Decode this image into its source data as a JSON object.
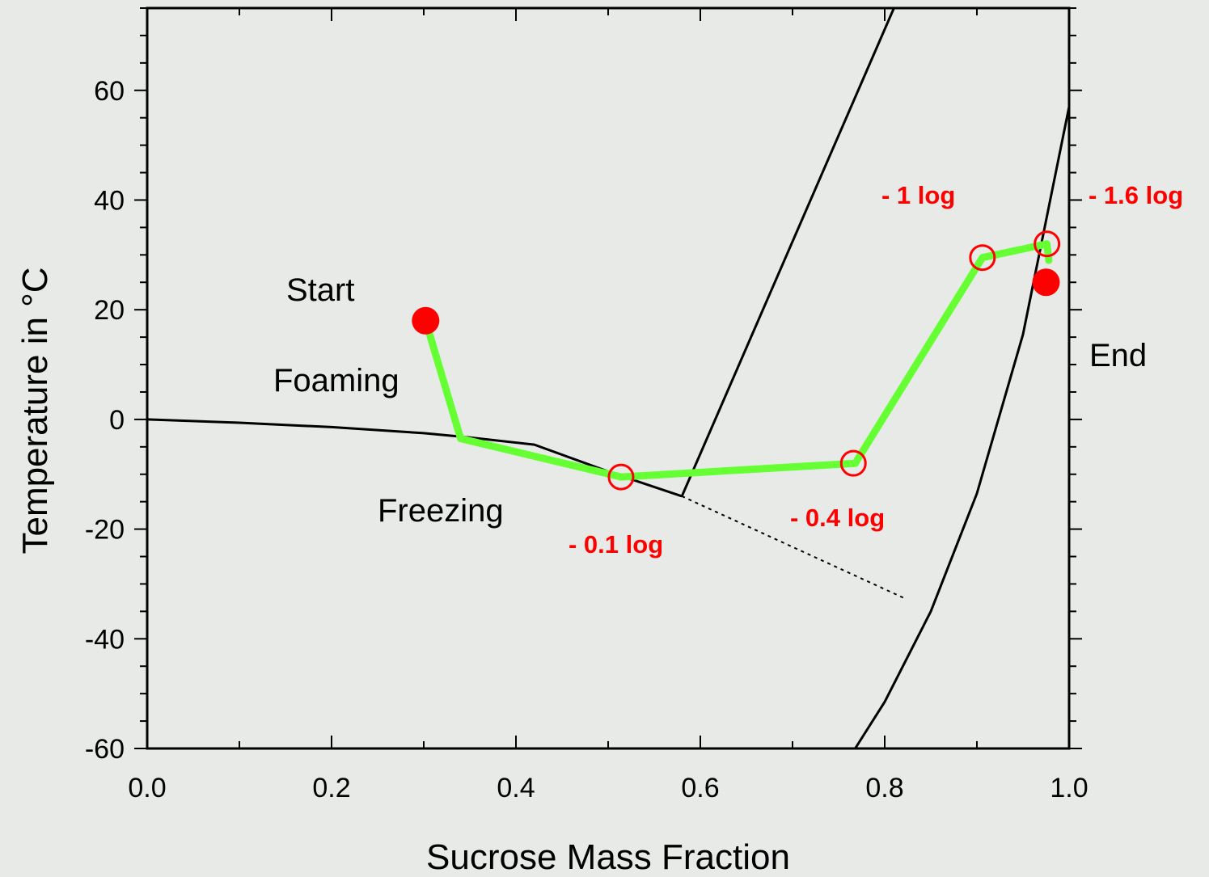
{
  "chart_data": {
    "type": "line",
    "xlabel": "Sucrose Mass Fraction",
    "ylabel": "Temperature in °C",
    "xlim": [
      0.0,
      1.0
    ],
    "ylim": [
      -60,
      75
    ],
    "x_ticks": [
      "0.0",
      "0.2",
      "0.4",
      "0.6",
      "0.8",
      "1.0"
    ],
    "y_ticks": [
      "-60",
      "-40",
      "-20",
      "0",
      "20",
      "40",
      "60"
    ],
    "grid": false,
    "curves": [
      {
        "id": "freezing-curve",
        "color": "#000000",
        "style": "solid",
        "points": [
          [
            0.0,
            0
          ],
          [
            0.1,
            -0.6
          ],
          [
            0.2,
            -1.4
          ],
          [
            0.3,
            -2.5
          ],
          [
            0.35,
            -3.3
          ],
          [
            0.42,
            -4.6
          ],
          [
            0.5,
            -9.5
          ],
          [
            0.58,
            -14
          ]
        ]
      },
      {
        "id": "freezing-curve-extension",
        "color": "#000000",
        "style": "dotted",
        "points": [
          [
            0.58,
            -14
          ],
          [
            0.82,
            -32.5
          ]
        ]
      },
      {
        "id": "solubility-curve",
        "color": "#000000",
        "style": "solid",
        "points": [
          [
            0.58,
            -14
          ],
          [
            0.81,
            75
          ]
        ]
      },
      {
        "id": "glass-transition-curve",
        "color": "#000000",
        "style": "solid",
        "points": [
          [
            0.768,
            -60
          ],
          [
            0.8,
            -51.5
          ],
          [
            0.85,
            -35
          ],
          [
            0.9,
            -13.5
          ],
          [
            0.95,
            15.5
          ],
          [
            1.0,
            57
          ]
        ]
      }
    ],
    "series": [
      {
        "name": "",
        "color": "#66ff33",
        "points": [
          [
            0.302,
            18
          ],
          [
            0.34,
            -3.5
          ],
          [
            0.514,
            -10.5
          ],
          [
            0.768,
            -8
          ],
          [
            0.906,
            29.5
          ],
          [
            0.976,
            32
          ],
          [
            0.978,
            29
          ]
        ]
      }
    ],
    "open_markers": [
      [
        0.514,
        -10.5
      ],
      [
        0.766,
        -8
      ],
      [
        0.906,
        29.5
      ],
      [
        0.976,
        32
      ]
    ],
    "filled_markers": [
      [
        0.302,
        18
      ],
      [
        0.975,
        25
      ]
    ],
    "marker_color": "#ff0000",
    "region_labels": {
      "start": "Start",
      "foaming": "Foaming",
      "freezing": "Freezing",
      "end": "End"
    },
    "log_reductions": [
      "- 0.1 log",
      "- 0.4 log",
      "- 1 log",
      "- 1.6 log"
    ]
  }
}
